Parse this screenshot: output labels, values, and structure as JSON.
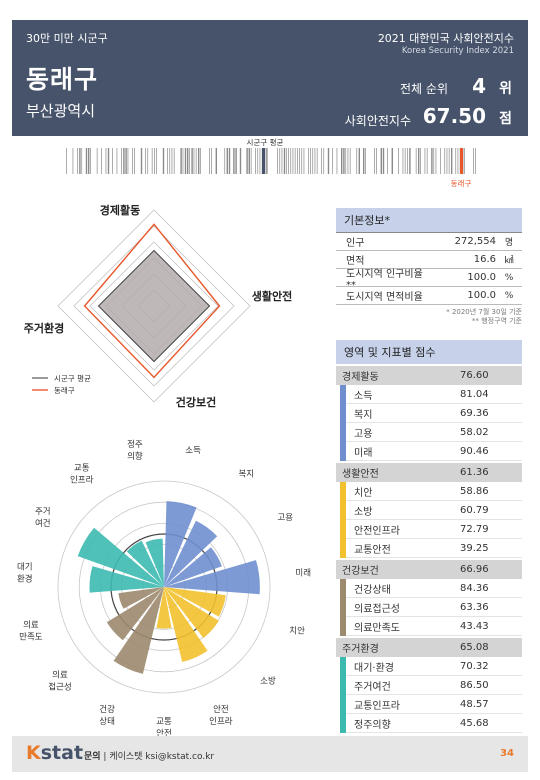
{
  "header": {
    "category": "30만 미만 시군구",
    "region_name": "동래구",
    "province": "부산광역시",
    "title": "2021 대한민국 사회안전지수",
    "subtitle": "Korea Security Index 2021",
    "rank_label": "전체 순위",
    "rank_value": "4",
    "rank_unit": "위",
    "index_label": "사회안전지수",
    "index_value": "67.50",
    "index_unit": "점"
  },
  "barcode": {
    "avg_label": "시군구 평균",
    "region_label": "동래구",
    "region_color": "#e8572c",
    "avg_color": "#46536a"
  },
  "radar": {
    "axes": [
      "경제활동",
      "생활안전",
      "건강보건",
      "주거환경"
    ],
    "avg_values": [
      52,
      52,
      52,
      52
    ],
    "region_values": [
      76.6,
      61.36,
      66.96,
      65.08
    ],
    "max": 90,
    "legend": [
      "시군구 평균",
      "동래구"
    ],
    "avg_color": "#555555",
    "region_color": "#e8572c"
  },
  "basic_info": {
    "title": "기본정보*",
    "rows": [
      {
        "label": "인구",
        "value": "272,554",
        "unit": "명"
      },
      {
        "label": "면적",
        "value": "16.6",
        "unit": "㎢"
      },
      {
        "label": "도시지역 인구비율**",
        "value": "100.0",
        "unit": "%"
      },
      {
        "label": "도시지역 면적비율",
        "value": "100.0",
        "unit": "%"
      }
    ],
    "note1": "* 2020년 7월 30일 기준",
    "note2": "** 행정구역 기준"
  },
  "scores": {
    "title": "영역 및 지표별 점수",
    "categories": [
      {
        "name": "경제활동",
        "value": "76.60",
        "color": "#6f8fcf",
        "items": [
          {
            "name": "소득",
            "value": "81.04"
          },
          {
            "name": "복지",
            "value": "69.36"
          },
          {
            "name": "고용",
            "value": "58.02"
          },
          {
            "name": "미래",
            "value": "90.46"
          }
        ]
      },
      {
        "name": "생활안전",
        "value": "61.36",
        "color": "#f2c12e",
        "items": [
          {
            "name": "치안",
            "value": "58.86"
          },
          {
            "name": "소방",
            "value": "60.79"
          },
          {
            "name": "안전인프라",
            "value": "72.79"
          },
          {
            "name": "교통안전",
            "value": "39.25"
          }
        ]
      },
      {
        "name": "건강보건",
        "value": "66.96",
        "color": "#9c8a6e",
        "items": [
          {
            "name": "건강상태",
            "value": "84.36"
          },
          {
            "name": "의료접근성",
            "value": "63.36"
          },
          {
            "name": "의료만족도",
            "value": "43.43"
          }
        ]
      },
      {
        "name": "주거환경",
        "value": "65.08",
        "color": "#3cbab0",
        "items": [
          {
            "name": "대기·환경",
            "value": "70.32"
          },
          {
            "name": "주거여건",
            "value": "86.50"
          },
          {
            "name": "교통인프라",
            "value": "48.57"
          },
          {
            "name": "정주의향",
            "value": "45.68"
          }
        ]
      }
    ]
  },
  "polar": {
    "labels": [
      {
        "text": "소득",
        "lines": [
          "소득"
        ]
      },
      {
        "text": "복지",
        "lines": [
          "복지"
        ]
      },
      {
        "text": "고용",
        "lines": [
          "고용"
        ]
      },
      {
        "text": "미래",
        "lines": [
          "미래"
        ]
      },
      {
        "text": "치안",
        "lines": [
          "치안"
        ]
      },
      {
        "text": "소방",
        "lines": [
          "소방"
        ]
      },
      {
        "text": "안전인프라",
        "lines": [
          "안전",
          "인프라"
        ]
      },
      {
        "text": "교통안전",
        "lines": [
          "교통",
          "안전"
        ]
      },
      {
        "text": "건강상태",
        "lines": [
          "건강",
          "상태"
        ]
      },
      {
        "text": "의료접근성",
        "lines": [
          "의료",
          "접근성"
        ]
      },
      {
        "text": "의료만족도",
        "lines": [
          "의료",
          "만족도"
        ]
      },
      {
        "text": "대기환경",
        "lines": [
          "대기",
          "환경"
        ]
      },
      {
        "text": "주거여건",
        "lines": [
          "주거",
          "여건"
        ]
      },
      {
        "text": "교통인프라",
        "lines": [
          "교통",
          "인프라"
        ]
      },
      {
        "text": "정주의향",
        "lines": [
          "정주",
          "의향"
        ]
      }
    ],
    "values": [
      81.04,
      69.36,
      58.02,
      90.46,
      58.86,
      60.79,
      72.79,
      39.25,
      84.36,
      63.36,
      43.43,
      70.32,
      86.5,
      48.57,
      45.68
    ],
    "colors": [
      "#6f8fcf",
      "#6f8fcf",
      "#6f8fcf",
      "#6f8fcf",
      "#f2c12e",
      "#f2c12e",
      "#f2c12e",
      "#f2c12e",
      "#9c8a6e",
      "#9c8a6e",
      "#9c8a6e",
      "#3cbab0",
      "#3cbab0",
      "#3cbab0",
      "#3cbab0"
    ],
    "avg_ring": 50,
    "max": 100
  },
  "footer": {
    "logo_k": "K",
    "logo_rest": "stat",
    "contact_label": "문의",
    "contact": "케이스탯 ksi@kstat.co.kr",
    "page": "34"
  }
}
